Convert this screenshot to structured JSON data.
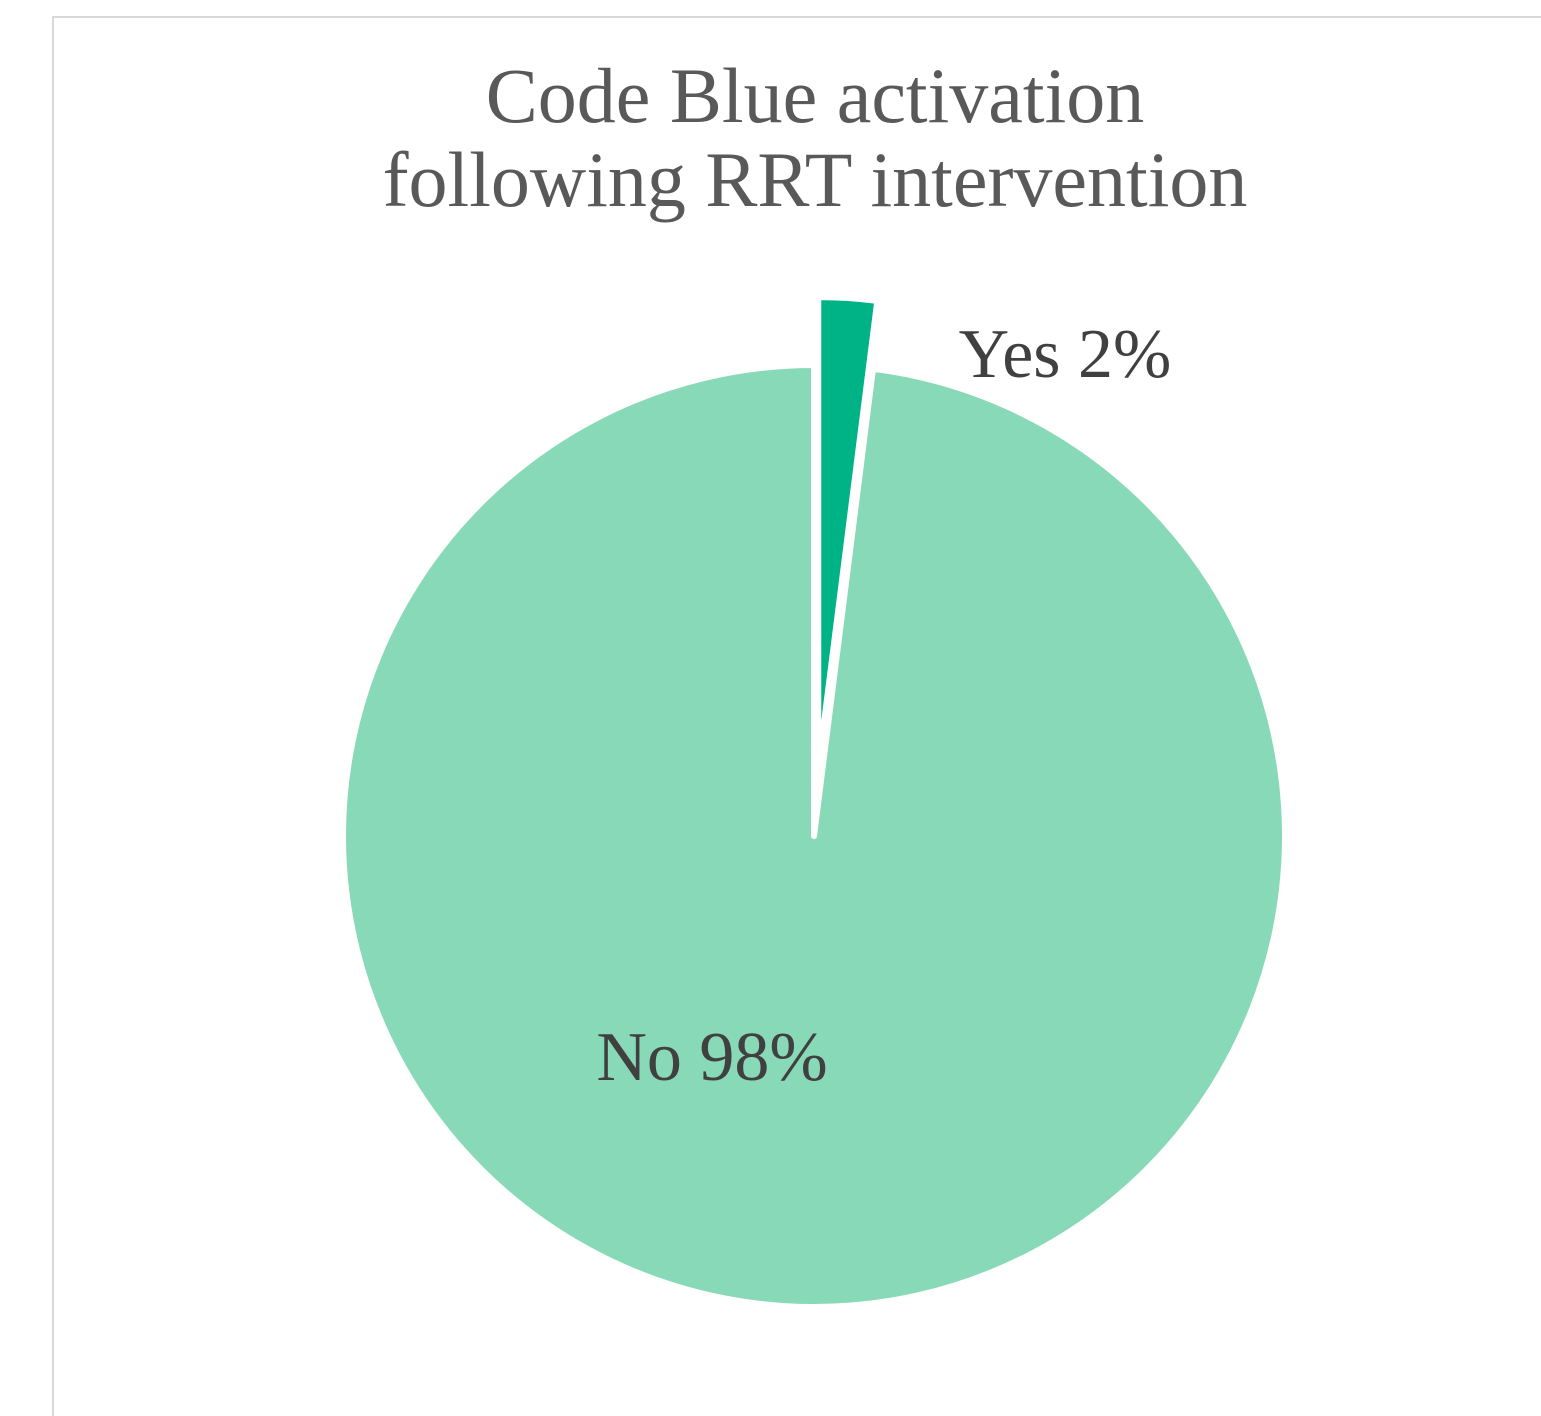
{
  "chart_data": {
    "type": "pie",
    "title_lines": [
      "Code Blue activation",
      "following RRT intervention"
    ],
    "slices": [
      {
        "name": "Yes",
        "value": 2,
        "label": "Yes 2%",
        "color": "#00b386",
        "exploded": true
      },
      {
        "name": "No",
        "value": 98,
        "label": "No 98%",
        "color": "#88d9b8",
        "exploded": false
      }
    ],
    "legend": false
  }
}
